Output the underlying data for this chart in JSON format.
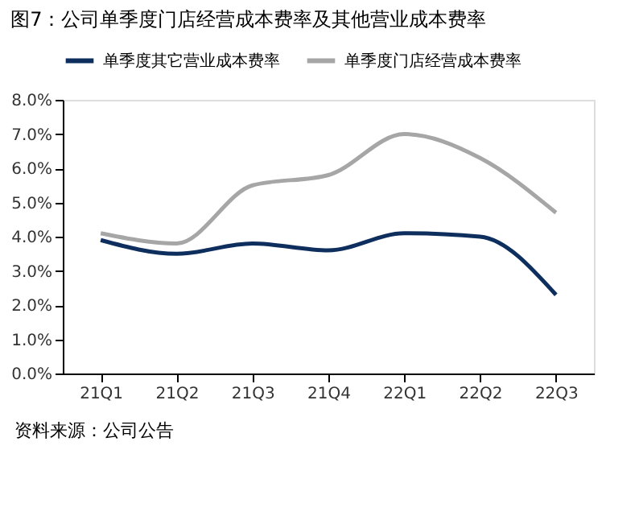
{
  "chart_data": {
    "type": "line",
    "title": "图7：公司单季度门店经营成本费率及其他营业成本费率",
    "categories": [
      "21Q1",
      "21Q2",
      "21Q3",
      "21Q4",
      "22Q1",
      "22Q2",
      "22Q3"
    ],
    "series": [
      {
        "name": "单季度其它营业成本费率",
        "color": "#0e2f5e",
        "values": [
          3.9,
          3.5,
          3.8,
          3.6,
          4.1,
          4.0,
          2.3
        ]
      },
      {
        "name": "单季度门店经营成本费率",
        "color": "#a6a6a6",
        "values": [
          4.1,
          3.8,
          5.5,
          5.8,
          7.0,
          6.3,
          4.7
        ]
      }
    ],
    "ylim": [
      0,
      8
    ],
    "yticks": [
      {
        "value": 0,
        "label": "0.0%"
      },
      {
        "value": 1,
        "label": "1.0%"
      },
      {
        "value": 2,
        "label": "2.0%"
      },
      {
        "value": 3,
        "label": "3.0%"
      },
      {
        "value": 4,
        "label": "4.0%"
      },
      {
        "value": 5,
        "label": "5.0%"
      },
      {
        "value": 6,
        "label": "6.0%"
      },
      {
        "value": 7,
        "label": "7.0%"
      },
      {
        "value": 8,
        "label": "8.0%"
      }
    ],
    "grid": false,
    "legend": "top",
    "marker": "none",
    "line_style": "solid",
    "annotations": [
      "资料来源：公司公告"
    ]
  }
}
